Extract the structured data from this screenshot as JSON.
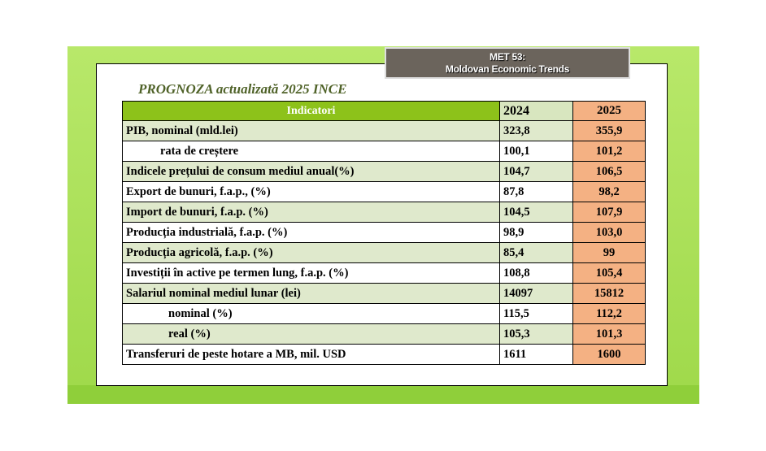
{
  "header": {
    "line1": "MET 53:",
    "line2": "Moldovan Economic Trends"
  },
  "title": "PROGNOZA actualizată 2025 INCE",
  "table": {
    "columns": [
      "Indicatori",
      "2024",
      "2025"
    ],
    "rows": [
      [
        "PIB, nominal (mld.lei)",
        "323,8",
        "355,9"
      ],
      [
        "rata de creștere",
        "100,1",
        "101,2"
      ],
      [
        "Indicele prețului de consum mediul anual(%)",
        "104,7",
        "106,5"
      ],
      [
        "Export de bunuri, f.a.p., (%)",
        "87,8",
        "98,2"
      ],
      [
        "Import de bunuri, f.a.p. (%)",
        "104,5",
        "107,9"
      ],
      [
        "Producția industrială, f.a.p. (%)",
        "98,9",
        "103,0"
      ],
      [
        "Producția agricolă, f.a.p. (%)",
        "85,4",
        "99"
      ],
      [
        "Investiții în active pe termen lung, f.a.p. (%)",
        "108,8",
        "105,4"
      ],
      [
        "Salariul nominal mediul lunar (lei)",
        "14097",
        "15812"
      ],
      [
        "nominal (%)",
        "115,5",
        "112,2"
      ],
      [
        "real (%)",
        "105,3",
        "101,3"
      ],
      [
        "Transferuri de peste hotare a MB,  mil. USD",
        "1611",
        "1600"
      ]
    ]
  }
}
